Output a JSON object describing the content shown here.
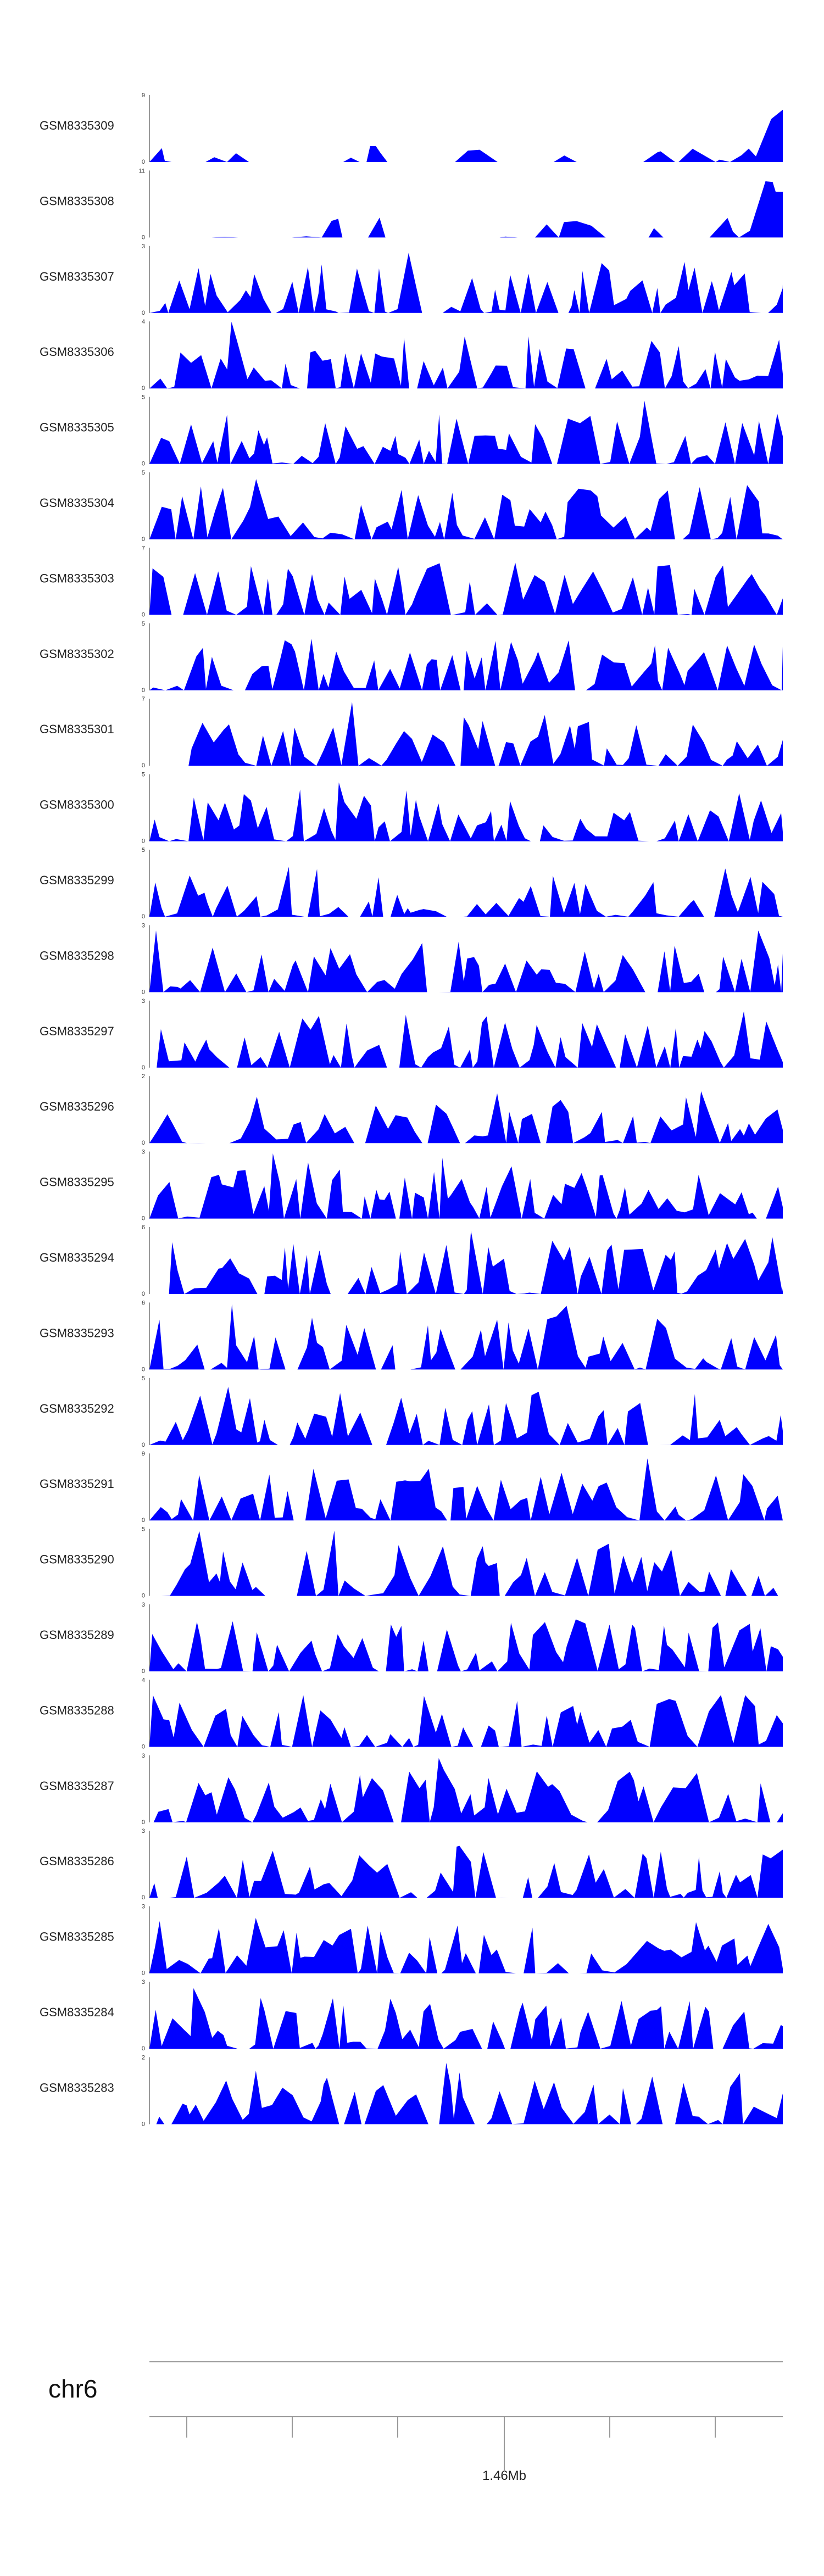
{
  "chart_data": {
    "type": "area",
    "color": "#0000ff",
    "tracks": [
      {
        "name": "GSM8335309",
        "ymax": "9"
      },
      {
        "name": "GSM8335308",
        "ymax": "11"
      },
      {
        "name": "GSM8335307",
        "ymax": "3"
      },
      {
        "name": "GSM8335306",
        "ymax": "4"
      },
      {
        "name": "GSM8335305",
        "ymax": "5"
      },
      {
        "name": "GSM8335304",
        "ymax": "5"
      },
      {
        "name": "GSM8335303",
        "ymax": "7"
      },
      {
        "name": "GSM8335302",
        "ymax": "5"
      },
      {
        "name": "GSM8335301",
        "ymax": "7"
      },
      {
        "name": "GSM8335300",
        "ymax": "5"
      },
      {
        "name": "GSM8335299",
        "ymax": "5"
      },
      {
        "name": "GSM8335298",
        "ymax": "3"
      },
      {
        "name": "GSM8335297",
        "ymax": "3"
      },
      {
        "name": "GSM8335296",
        "ymax": "2"
      },
      {
        "name": "GSM8335295",
        "ymax": "3"
      },
      {
        "name": "GSM8335294",
        "ymax": "6"
      },
      {
        "name": "GSM8335293",
        "ymax": "6"
      },
      {
        "name": "GSM8335292",
        "ymax": "5"
      },
      {
        "name": "GSM8335291",
        "ymax": "9"
      },
      {
        "name": "GSM8335290",
        "ymax": "5"
      },
      {
        "name": "GSM8335289",
        "ymax": "3"
      },
      {
        "name": "GSM8335288",
        "ymax": "4"
      },
      {
        "name": "GSM8335287",
        "ymax": "3"
      },
      {
        "name": "GSM8335286",
        "ymax": "3"
      },
      {
        "name": "GSM8335285",
        "ymax": "3"
      },
      {
        "name": "GSM8335284",
        "ymax": "3"
      },
      {
        "name": "GSM8335283",
        "ymax": "2"
      }
    ],
    "ymin_label": "0",
    "chromosome": "chr6",
    "position_label": "1.46Mb"
  }
}
